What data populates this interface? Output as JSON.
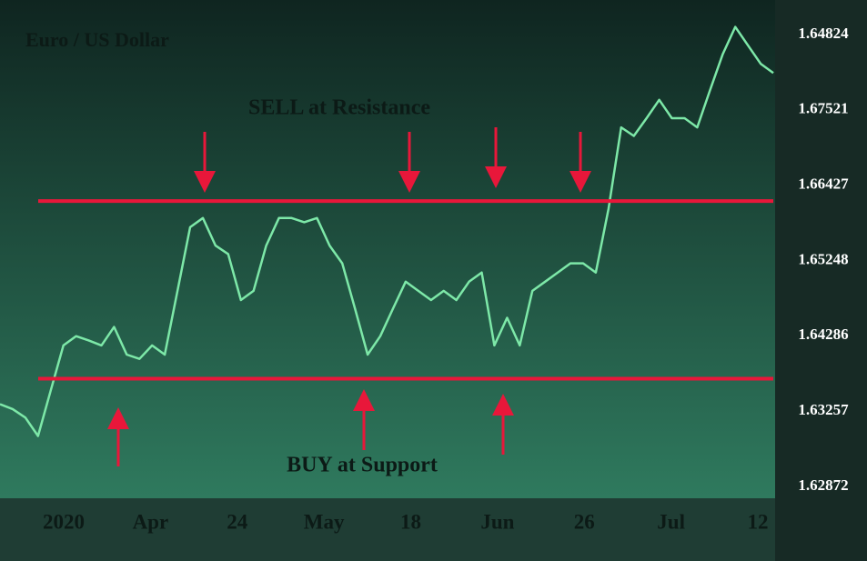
{
  "chart_data": {
    "type": "line",
    "title": "Euro / US Dollar",
    "annotations": [
      "SELL at Resistance",
      "BUY at Support"
    ],
    "y_axis_labels": [
      "1.64824",
      "1.67521",
      "1.66427",
      "1.65248",
      "1.64286",
      "1.63257",
      "1.62872"
    ],
    "x_axis_labels": [
      "2020",
      "Apr",
      "24",
      "May",
      "18",
      "Jun",
      "26",
      "Jul",
      "12"
    ],
    "ylim": [
      1.6202,
      1.6906
    ],
    "color": "#7de8a8",
    "values": [
      1.6335,
      1.6328,
      1.6316,
      1.629,
      1.6354,
      1.6418,
      1.6431,
      1.6425,
      1.6418,
      1.6444,
      1.6405,
      1.6399,
      1.6418,
      1.6405,
      1.6495,
      1.6585,
      1.6598,
      1.6559,
      1.6547,
      1.6482,
      1.6495,
      1.6559,
      1.6598,
      1.6598,
      1.6592,
      1.6598,
      1.6559,
      1.6534,
      1.647,
      1.6405,
      1.6431,
      1.647,
      1.6508,
      1.6495,
      1.6482,
      1.6495,
      1.6482,
      1.6508,
      1.6521,
      1.6418,
      1.6457,
      1.6418,
      1.6495,
      1.6508,
      1.6521,
      1.6534,
      1.6534,
      1.6521,
      1.6611,
      1.6726,
      1.6714,
      1.6739,
      1.6765,
      1.6739,
      1.6739,
      1.6726,
      1.6778,
      1.6829,
      1.6868,
      1.6842,
      1.6816,
      1.6803
    ],
    "levels": [
      {
        "name": "Resistance",
        "value": 1.6622,
        "color": "#e8173a"
      },
      {
        "name": "Support",
        "value": 1.6371,
        "color": "#e8173a"
      }
    ]
  }
}
